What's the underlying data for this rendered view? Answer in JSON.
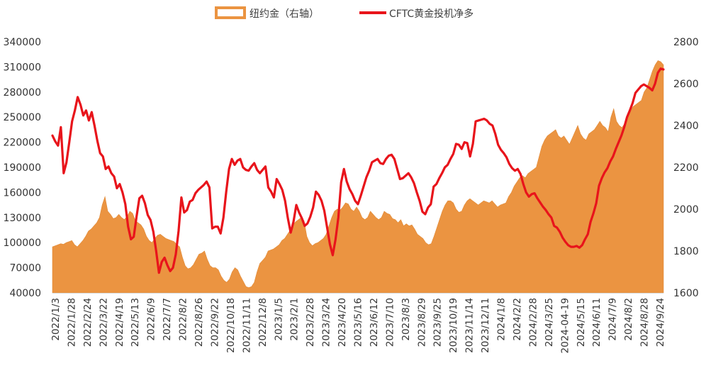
{
  "chart_data": {
    "type": "area",
    "title": "",
    "legend_position": "top",
    "grid": false,
    "colors": {
      "gold_area": "#EB9441",
      "gold_area_edge": "#E08A38",
      "cftc_line": "#E8141B"
    },
    "left_axis": {
      "ylim": [
        40000,
        340000
      ],
      "ticks": [
        "340000",
        "310000",
        "280000",
        "250000",
        "220000",
        "190000",
        "160000",
        "130000",
        "100000",
        "70000",
        "40000"
      ]
    },
    "right_axis": {
      "ylim": [
        1600,
        2800
      ],
      "ticks": [
        "2800",
        "2600",
        "2400",
        "2200",
        "2000",
        "1800",
        "1600"
      ]
    },
    "x_tick_labels": [
      "2022/1/3",
      "2022/1/28",
      "2022/2/24",
      "2022/3/22",
      "2022/4/19",
      "2022/5/13",
      "2022/6/9",
      "2022/7/7",
      "2022/8/2",
      "2022/8/26",
      "2022/9/22",
      "2022/10/18",
      "2022/11/11",
      "2022/12/8",
      "2023/1/5",
      "2023/2/1",
      "2023/2/28",
      "2023/3/24",
      "2023/4/20",
      "2023/5/16",
      "2023/6/12",
      "2023/7/10",
      "2023/8/3",
      "2023/8/29",
      "2023/9/25",
      "2023/10/19",
      "2023/11/14",
      "2023/12/11",
      "2024/1/8",
      "2024/2/2",
      "2024/2/28",
      "2024/3/25",
      "2024-04-19",
      "2024/5/15",
      "2024/6/11",
      "2024/7/9",
      "2024/8/2",
      "2024/8/28",
      "2024/9/24"
    ],
    "series": [
      {
        "name": "纽约金（右轴）",
        "axis": "right",
        "style": "area",
        "values": [
          1820,
          1825,
          1830,
          1835,
          1832,
          1840,
          1845,
          1850,
          1830,
          1820,
          1835,
          1850,
          1870,
          1895,
          1905,
          1920,
          1935,
          1960,
          2020,
          2060,
          1990,
          1975,
          1955,
          1960,
          1975,
          1960,
          1950,
          1965,
          1990,
          1980,
          1945,
          1935,
          1925,
          1905,
          1870,
          1850,
          1840,
          1860,
          1875,
          1880,
          1870,
          1860,
          1855,
          1850,
          1845,
          1830,
          1820,
          1770,
          1730,
          1715,
          1720,
          1735,
          1760,
          1785,
          1790,
          1800,
          1760,
          1730,
          1720,
          1720,
          1710,
          1680,
          1660,
          1650,
          1665,
          1700,
          1720,
          1710,
          1680,
          1655,
          1630,
          1625,
          1630,
          1650,
          1700,
          1740,
          1755,
          1770,
          1800,
          1805,
          1810,
          1820,
          1830,
          1850,
          1860,
          1880,
          1900,
          1925,
          1940,
          1950,
          1960,
          1945,
          1870,
          1840,
          1825,
          1835,
          1840,
          1850,
          1860,
          1880,
          1920,
          1960,
          1990,
          2000,
          1995,
          2010,
          2030,
          2025,
          2000,
          1990,
          2010,
          1990,
          1960,
          1950,
          1960,
          1990,
          1975,
          1960,
          1950,
          1960,
          1990,
          1980,
          1975,
          1955,
          1950,
          1935,
          1950,
          1920,
          1930,
          1920,
          1925,
          1905,
          1880,
          1870,
          1860,
          1840,
          1830,
          1835,
          1870,
          1910,
          1950,
          1990,
          2020,
          2040,
          2040,
          2030,
          2000,
          1985,
          1990,
          2020,
          2040,
          2050,
          2040,
          2030,
          2020,
          2030,
          2040,
          2035,
          2030,
          2040,
          2025,
          2010,
          2020,
          2025,
          2030,
          2060,
          2080,
          2110,
          2130,
          2150,
          2160,
          2150,
          2170,
          2180,
          2190,
          2200,
          2250,
          2300,
          2330,
          2350,
          2360,
          2370,
          2380,
          2350,
          2340,
          2350,
          2330,
          2310,
          2340,
          2370,
          2400,
          2360,
          2340,
          2330,
          2360,
          2370,
          2380,
          2400,
          2420,
          2400,
          2390,
          2370,
          2440,
          2480,
          2420,
          2400,
          2390,
          2410,
          2440,
          2470,
          2490,
          2500,
          2510,
          2520,
          2560,
          2580,
          2620,
          2660,
          2690,
          2710,
          2705,
          2690
        ]
      },
      {
        "name": "CFTC黄金投机净多",
        "axis": "left",
        "style": "line",
        "values": [
          228000,
          221000,
          216000,
          238000,
          183000,
          196000,
          220000,
          245000,
          258000,
          274000,
          265000,
          252000,
          258000,
          246000,
          256000,
          240000,
          222000,
          207000,
          203000,
          188000,
          191000,
          183000,
          179000,
          165000,
          170000,
          160000,
          146000,
          119000,
          104000,
          107000,
          131000,
          153000,
          156000,
          147000,
          133000,
          127000,
          113000,
          90000,
          64000,
          77000,
          82000,
          73000,
          66000,
          70000,
          86000,
          114000,
          154000,
          136000,
          139000,
          149000,
          151000,
          159000,
          163000,
          166000,
          169000,
          173000,
          166000,
          117000,
          119000,
          119000,
          111000,
          130000,
          161000,
          188000,
          200000,
          193000,
          198000,
          200000,
          190000,
          187000,
          186000,
          191000,
          195000,
          187000,
          183000,
          187000,
          191000,
          166000,
          161000,
          154000,
          176000,
          170000,
          163000,
          150000,
          129000,
          112000,
          125000,
          145000,
          136000,
          129000,
          120000,
          123000,
          131000,
          142000,
          161000,
          157000,
          150000,
          138000,
          118000,
          98000,
          85000,
          104000,
          130000,
          172000,
          188000,
          173000,
          164000,
          158000,
          150000,
          146000,
          156000,
          167000,
          178000,
          186000,
          196000,
          198000,
          200000,
          195000,
          194000,
          200000,
          204000,
          205000,
          200000,
          188000,
          176000,
          177000,
          180000,
          183000,
          178000,
          171000,
          160000,
          150000,
          137000,
          134000,
          142000,
          146000,
          167000,
          170000,
          177000,
          183000,
          190000,
          193000,
          200000,
          206000,
          218000,
          217000,
          212000,
          220000,
          219000,
          203000,
          218000,
          245000,
          246000,
          247000,
          248000,
          246000,
          242000,
          240000,
          230000,
          217000,
          211000,
          207000,
          202000,
          194000,
          189000,
          186000,
          188000,
          182000,
          170000,
          160000,
          155000,
          158000,
          159000,
          153000,
          148000,
          143000,
          139000,
          134000,
          130000,
          120000,
          118000,
          113000,
          106000,
          101000,
          97000,
          95000,
          95000,
          96000,
          94000,
          97000,
          104000,
          110000,
          125000,
          135000,
          147000,
          168000,
          177000,
          184000,
          189000,
          197000,
          203000,
          212000,
          220000,
          228000,
          238000,
          250000,
          258000,
          267000,
          279000,
          283000,
          287000,
          289000,
          287000,
          285000,
          282000,
          290000,
          303000,
          308000,
          307000
        ]
      }
    ]
  },
  "legend": {
    "gold_label": "纽约金（右轴）",
    "cftc_label": "CFTC黄金投机净多"
  }
}
